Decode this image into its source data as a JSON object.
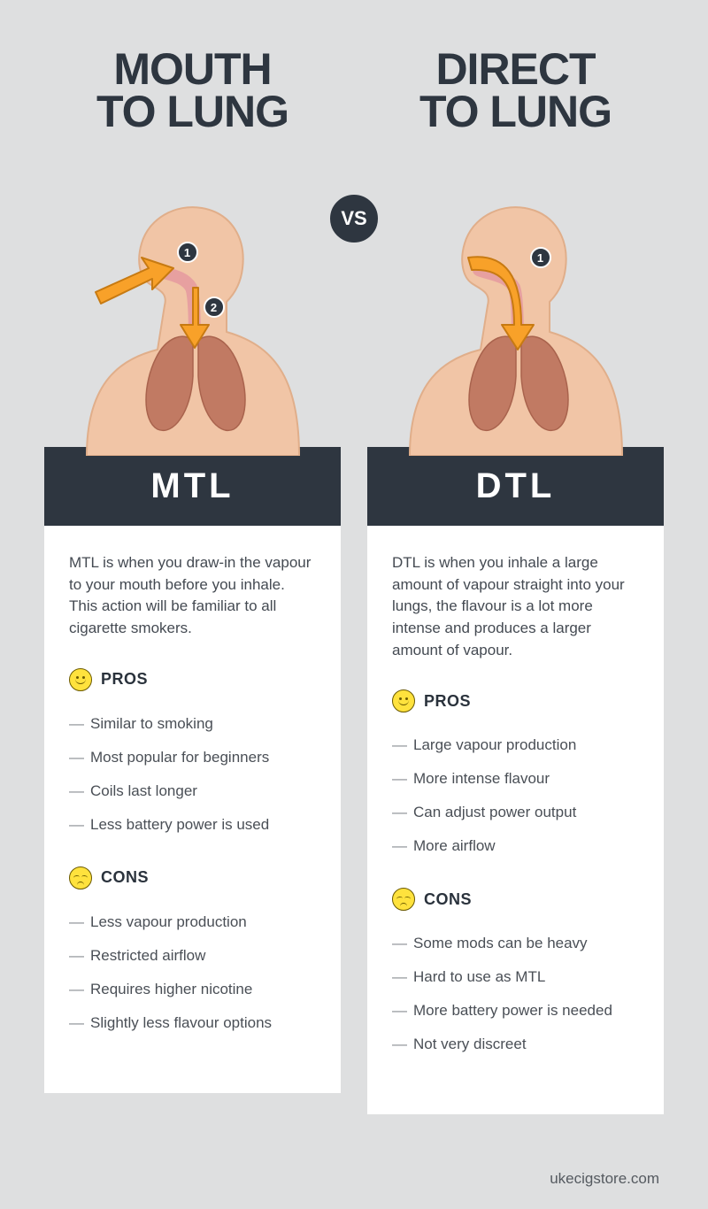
{
  "vs_label": "VS",
  "footer": "ukecigstore.com",
  "colors": {
    "bg": "#dedfe0",
    "dark": "#2e3640",
    "white": "#ffffff",
    "skin": "#f1c5a6",
    "skin_stroke": "#e0ae8a",
    "lung": "#c17a63",
    "lung_stroke": "#a9634d",
    "throat": "#e7a0a0",
    "arrow_fill": "#f8a129",
    "arrow_stroke": "#c77a12",
    "emoji_fill": "#ffe23d",
    "emoji_stroke": "#6b5a00",
    "text": "#444a52"
  },
  "left": {
    "title": "MOUTH\nTO LUNG",
    "abbr": "MTL",
    "desc": "MTL is when you draw-in the vapour to your mouth before you inhale. This action will be familiar to all cigarette smokers.",
    "pros_label": "PROS",
    "cons_label": "CONS",
    "pros": [
      "Similar to smoking",
      "Most popular for beginners",
      "Coils last longer",
      "Less battery power is used"
    ],
    "cons": [
      "Less vapour production",
      "Restricted airflow",
      "Requires higher nicotine",
      "Slightly less flavour options"
    ],
    "steps": [
      "1",
      "2"
    ]
  },
  "right": {
    "title": "DIRECT\nTO LUNG",
    "abbr": "DTL",
    "desc": "DTL is when you inhale a large amount of vapour straight into your lungs, the flavour is a lot more intense and produces a larger amount of vapour.",
    "pros_label": "PROS",
    "cons_label": "CONS",
    "pros": [
      "Large vapour production",
      "More intense flavour",
      "Can adjust power output",
      "More airflow"
    ],
    "cons": [
      "Some mods can be heavy",
      "Hard to use as MTL",
      "More battery power is needed",
      "Not very discreet"
    ],
    "steps": [
      "1"
    ]
  }
}
